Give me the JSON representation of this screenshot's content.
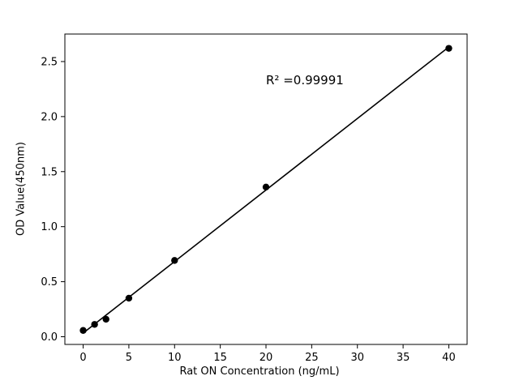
{
  "chart_data": {
    "type": "scatter",
    "x": [
      0,
      1.25,
      2.5,
      5,
      10,
      20,
      40
    ],
    "y": [
      0.057,
      0.112,
      0.159,
      0.35,
      0.693,
      1.36,
      2.62
    ],
    "title": "",
    "xlabel": "Rat ON Concentration (ng/mL)",
    "ylabel": "OD Value(450nm)",
    "annotation": "R² =0.99991",
    "xlim": [
      -2,
      42
    ],
    "ylim": [
      -0.07,
      2.75
    ],
    "xticks": [
      0,
      5,
      10,
      15,
      20,
      25,
      30,
      35,
      40
    ],
    "yticks": [
      0.0,
      0.5,
      1.0,
      1.5,
      2.0,
      2.5
    ],
    "fit_line": "linear",
    "grid": false,
    "legend": false,
    "marker_color": "#000000",
    "line_color": "#000000",
    "axis_color": "#000000",
    "background_color": "#ffffff"
  }
}
